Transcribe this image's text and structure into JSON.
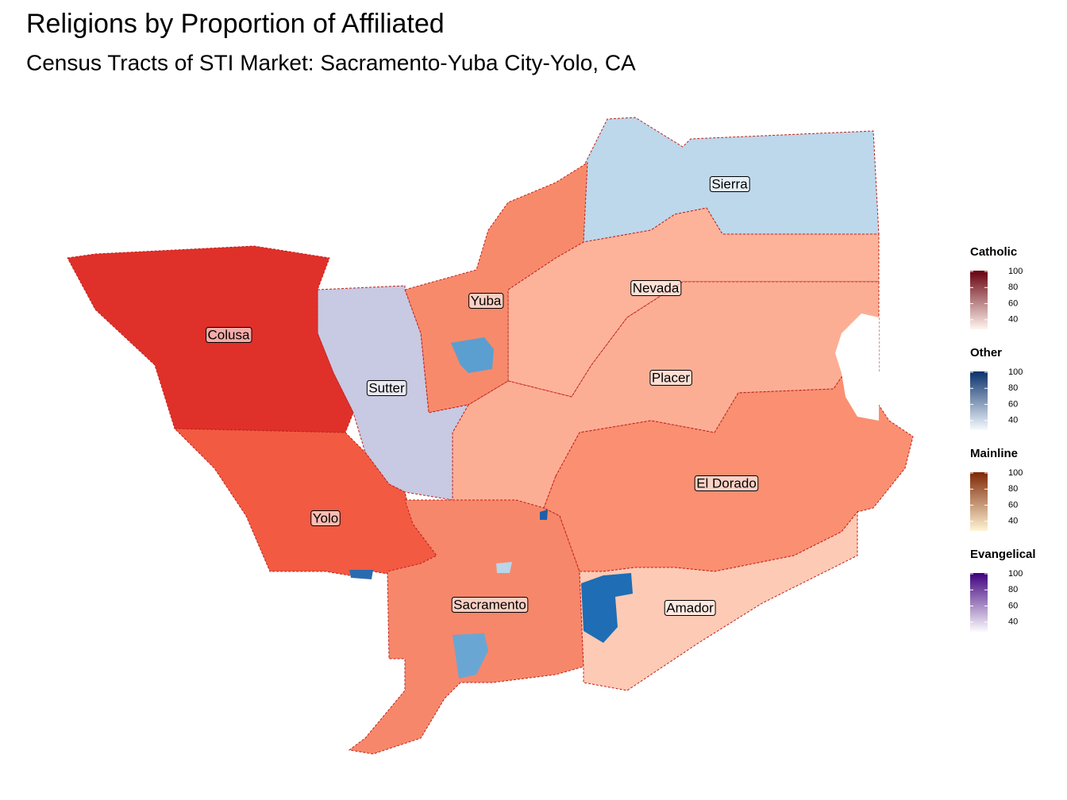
{
  "title": "Religions by Proportion of Affiliated",
  "subtitle": "Census Tracts of STI Market: Sacramento-Yuba City-Yolo, CA",
  "counties": [
    {
      "label": "Sierra",
      "color": "#bdd7eb"
    },
    {
      "label": "Nevada",
      "color": "#fcb39a"
    },
    {
      "label": "Placer",
      "color": "#fcae94"
    },
    {
      "label": "Yuba",
      "color": "#f88a6c"
    },
    {
      "label": "Sutter",
      "color": "#c8c9e2"
    },
    {
      "label": "Colusa",
      "color": "#e0302a"
    },
    {
      "label": "Yolo",
      "color": "#f25a42"
    },
    {
      "label": "Sacramento",
      "color": "#f7876a"
    },
    {
      "label": "El Dorado",
      "color": "#fa8f71"
    },
    {
      "label": "Amador",
      "color": "#fdcab5"
    }
  ],
  "legends": [
    {
      "title": "Catholic",
      "colors": [
        "#fff5f0",
        "#67000d"
      ],
      "lim": [
        28,
        101
      ],
      "ticks": [
        40,
        60,
        80,
        100
      ]
    },
    {
      "title": "Other",
      "colors": [
        "#f7fbff",
        "#08306b"
      ],
      "lim": [
        28,
        101
      ],
      "ticks": [
        40,
        60,
        80,
        100
      ]
    },
    {
      "title": "Mainline",
      "colors": [
        "#fff5d6",
        "#7f2704"
      ],
      "lim": [
        28,
        101
      ],
      "ticks": [
        40,
        60,
        80,
        100
      ]
    },
    {
      "title": "Evangelical",
      "colors": [
        "#fcfbfd",
        "#3f007d"
      ],
      "lim": [
        28,
        101
      ],
      "ticks": [
        40,
        60,
        80,
        100
      ]
    }
  ]
}
